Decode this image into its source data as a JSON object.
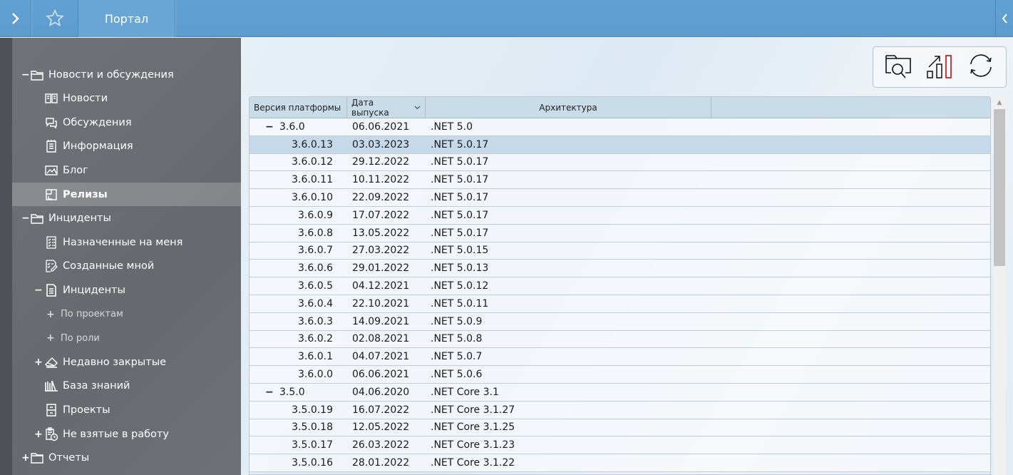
{
  "topbar": {
    "title": "Портал",
    "menu_icon": "chevron-right-icon",
    "favorite_icon": "star-icon",
    "collapse_icon": "chevron-left-icon",
    "color": "#5f9fcf"
  },
  "sidebar": {
    "items": [
      {
        "label": "Новости и обсуждения",
        "level": 0,
        "expander": "−",
        "icon": "folder-open-icon"
      },
      {
        "label": "Новости",
        "level": 1,
        "expander": "",
        "icon": "book-icon"
      },
      {
        "label": "Обсуждения",
        "level": 1,
        "expander": "",
        "icon": "chat-icon"
      },
      {
        "label": "Информация",
        "level": 1,
        "expander": "",
        "icon": "notepad-icon"
      },
      {
        "label": "Блог",
        "level": 1,
        "expander": "",
        "icon": "image-icon"
      },
      {
        "label": "Релизы",
        "level": 1,
        "expander": "",
        "icon": "package-icon",
        "selected": true
      },
      {
        "label": "Инциденты",
        "level": 0,
        "expander": "−",
        "icon": "folder-open-icon"
      },
      {
        "label": "Назначенные на меня",
        "level": 1,
        "expander": "",
        "icon": "checklist-icon"
      },
      {
        "label": "Созданные мной",
        "level": 1,
        "expander": "",
        "icon": "checklist-edit-icon"
      },
      {
        "label": "Инциденты",
        "level": 1,
        "expander": "−",
        "icon": "document-icon"
      },
      {
        "label": "По проектам",
        "level": 2,
        "expander": "+",
        "icon": ""
      },
      {
        "label": "По роли",
        "level": 2,
        "expander": "+",
        "icon": ""
      },
      {
        "label": "Недавно закрытые",
        "level": 1,
        "expander": "+",
        "icon": "eraser-icon"
      },
      {
        "label": "База знаний",
        "level": 1,
        "expander": "",
        "icon": "library-icon"
      },
      {
        "label": "Проекты",
        "level": 1,
        "expander": "",
        "icon": "cabinet-icon"
      },
      {
        "label": "Не взятые в работу",
        "level": 1,
        "expander": "+",
        "icon": "clipboard-clock-icon"
      },
      {
        "label": "Отчеты",
        "level": 0,
        "expander": "+",
        "icon": "folder-icon"
      }
    ]
  },
  "toolbar": {
    "buttons": [
      {
        "icon": "folder-search-icon"
      },
      {
        "icon": "chart-growth-icon"
      },
      {
        "icon": "refresh-icon"
      }
    ]
  },
  "table": {
    "columns": [
      "Версия платформы",
      "Дата выпуска",
      "Архитектура"
    ],
    "sort_icon": "chevron-down-icon",
    "rows": [
      {
        "version": "3.6.0",
        "date": "06.06.2021",
        "arch": ".NET 5.0",
        "group": true,
        "expander": "−"
      },
      {
        "version": "3.6.0.13",
        "date": "03.03.2023",
        "arch": ".NET 5.0.17",
        "selected": true
      },
      {
        "version": "3.6.0.12",
        "date": "29.12.2022",
        "arch": ".NET 5.0.17"
      },
      {
        "version": "3.6.0.11",
        "date": "10.11.2022",
        "arch": ".NET 5.0.17"
      },
      {
        "version": "3.6.0.10",
        "date": "22.09.2022",
        "arch": ".NET 5.0.17"
      },
      {
        "version": "3.6.0.9",
        "date": "17.07.2022",
        "arch": ".NET 5.0.17"
      },
      {
        "version": "3.6.0.8",
        "date": "13.05.2022",
        "arch": ".NET 5.0.17"
      },
      {
        "version": "3.6.0.7",
        "date": "27.03.2022",
        "arch": ".NET 5.0.15"
      },
      {
        "version": "3.6.0.6",
        "date": "29.01.2022",
        "arch": ".NET 5.0.13"
      },
      {
        "version": "3.6.0.5",
        "date": "04.12.2021",
        "arch": ".NET 5.0.12"
      },
      {
        "version": "3.6.0.4",
        "date": "22.10.2021",
        "arch": ".NET 5.0.11"
      },
      {
        "version": "3.6.0.3",
        "date": "14.09.2021",
        "arch": ".NET 5.0.9"
      },
      {
        "version": "3.6.0.2",
        "date": "02.08.2021",
        "arch": ".NET 5.0.8"
      },
      {
        "version": "3.6.0.1",
        "date": "04.07.2021",
        "arch": ".NET 5.0.7"
      },
      {
        "version": "3.6.0.0",
        "date": "06.06.2021",
        "arch": ".NET 5.0.6"
      },
      {
        "version": "3.5.0",
        "date": "04.06.2020",
        "arch": ".NET Core 3.1",
        "group": true,
        "expander": "−"
      },
      {
        "version": "3.5.0.19",
        "date": "16.07.2022",
        "arch": ".NET Core 3.1.27"
      },
      {
        "version": "3.5.0.18",
        "date": "12.05.2022",
        "arch": ".NET Core 3.1.25"
      },
      {
        "version": "3.5.0.17",
        "date": "26.03.2022",
        "arch": ".NET Core 3.1.23"
      },
      {
        "version": "3.5.0.16",
        "date": "28.01.2022",
        "arch": ".NET Core 3.1.22"
      }
    ]
  }
}
